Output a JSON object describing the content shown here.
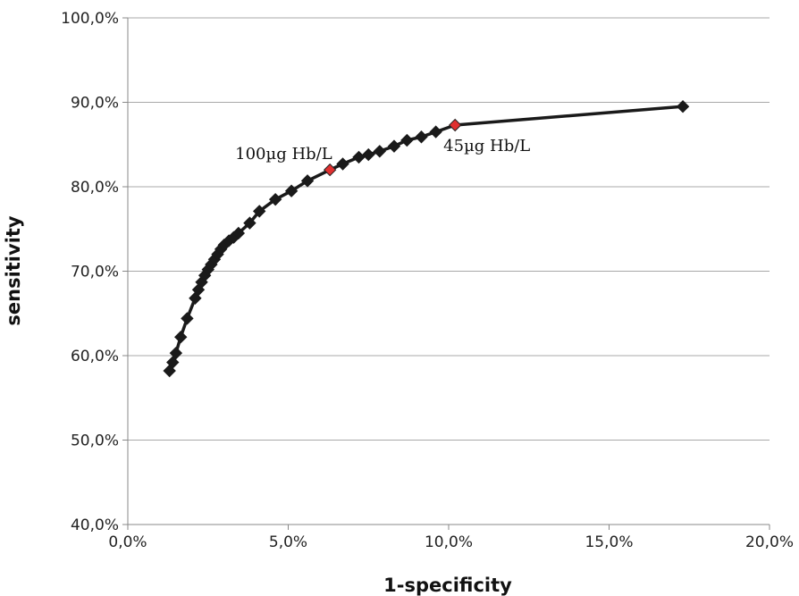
{
  "chart_data": {
    "type": "line",
    "title": "",
    "xlabel": "1-specificity",
    "ylabel": "sensitivity",
    "xlim": [
      0,
      20
    ],
    "ylim": [
      40,
      100
    ],
    "x_ticks": [
      0,
      5,
      10,
      15,
      20
    ],
    "y_ticks": [
      40,
      50,
      60,
      70,
      80,
      90,
      100
    ],
    "x_tick_labels": [
      "0,0%",
      "5,0%",
      "10,0%",
      "15,0%",
      "20,0%"
    ],
    "y_tick_labels": [
      "40,0%",
      "50,0%",
      "60,0%",
      "70,0%",
      "80,0%",
      "90,0%",
      "100,0%"
    ],
    "grid": "horizontal",
    "legend": "none",
    "marker": "diamond",
    "line_color": "#1a1a1a",
    "marker_color": "#1a1a1a",
    "highlight_color": "#e03030",
    "series": [
      {
        "points": [
          [
            1.3,
            58.2
          ],
          [
            1.4,
            59.2
          ],
          [
            1.5,
            60.3
          ],
          [
            1.65,
            62.2
          ],
          [
            1.85,
            64.4
          ],
          [
            2.1,
            66.8
          ],
          [
            2.2,
            67.8
          ],
          [
            2.3,
            68.7
          ],
          [
            2.4,
            69.5
          ],
          [
            2.5,
            70.2
          ],
          [
            2.6,
            70.8
          ],
          [
            2.7,
            71.4
          ],
          [
            2.8,
            72.0
          ],
          [
            2.9,
            72.6
          ],
          [
            3.0,
            73.1
          ],
          [
            3.15,
            73.6
          ],
          [
            3.3,
            74.0
          ],
          [
            3.45,
            74.5
          ],
          [
            3.8,
            75.7
          ],
          [
            4.1,
            77.1
          ],
          [
            4.6,
            78.5
          ],
          [
            5.1,
            79.5
          ],
          [
            5.6,
            80.7
          ],
          [
            6.3,
            82.0
          ],
          [
            6.7,
            82.7
          ],
          [
            7.2,
            83.5
          ],
          [
            7.5,
            83.8
          ],
          [
            7.85,
            84.2
          ],
          [
            8.3,
            84.8
          ],
          [
            8.7,
            85.5
          ],
          [
            9.15,
            85.9
          ],
          [
            9.6,
            86.5
          ],
          [
            10.2,
            87.3
          ],
          [
            17.3,
            89.5
          ]
        ]
      }
    ],
    "annotations": [
      {
        "text": "100µg Hb/L",
        "x": 6.3,
        "y": 82.0,
        "highlight": true
      },
      {
        "text": "45µg Hb/L",
        "x": 10.2,
        "y": 87.3,
        "highlight": true
      }
    ]
  }
}
